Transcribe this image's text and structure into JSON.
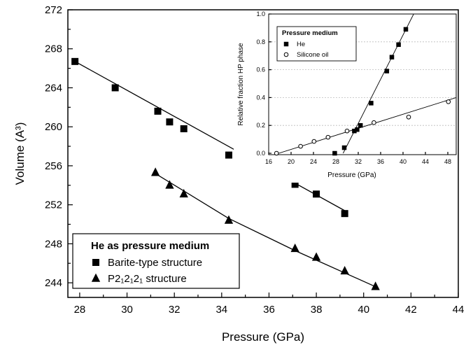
{
  "chart_data": [
    {
      "type": "scatter",
      "title": "",
      "xlabel": "Pressure (GPa)",
      "ylabel": "Volume (A³)",
      "xlim": [
        27.5,
        44
      ],
      "ylim": [
        242.5,
        272
      ],
      "xticks": [
        28,
        30,
        32,
        34,
        36,
        38,
        40,
        42,
        44
      ],
      "yticks": [
        244,
        248,
        252,
        256,
        260,
        264,
        268,
        272
      ],
      "legend": {
        "title": "He as pressure medium",
        "placement": "bottom-left"
      },
      "series": [
        {
          "name": "Barite-type structure",
          "marker": "square",
          "x": [
            27.8,
            29.5,
            31.3,
            31.8,
            32.4,
            34.3,
            37.1,
            38.0,
            39.2
          ],
          "y": [
            266.7,
            264.0,
            261.6,
            260.5,
            259.8,
            257.1,
            254.1,
            253.1,
            251.1
          ],
          "fit": [
            [
              27.8,
              266.7
            ],
            [
              39.2,
              251.4
            ]
          ]
        },
        {
          "name": "P2₁2₁2₁ structure",
          "marker": "triangle",
          "x": [
            31.2,
            31.8,
            32.4,
            34.3,
            37.1,
            38.0,
            39.2,
            40.5
          ],
          "y": [
            255.3,
            254.0,
            253.1,
            250.4,
            247.5,
            246.6,
            245.2,
            243.6
          ],
          "fit": [
            [
              31.2,
              255.2
            ],
            [
              34.3,
              250.6
            ],
            [
              37.1,
              247.3
            ],
            [
              40.5,
              243.6
            ]
          ]
        }
      ]
    },
    {
      "type": "scatter",
      "title": "",
      "xlabel": "Pressure (GPa)",
      "ylabel": "Relative fraction HP phase",
      "xlim": [
        16,
        49.5
      ],
      "ylim": [
        -0.01,
        1.0
      ],
      "xticks": [
        16,
        20,
        24,
        28,
        32,
        36,
        40,
        44,
        48
      ],
      "yticks": [
        0.0,
        0.2,
        0.4,
        0.6,
        0.8,
        1.0
      ],
      "grid": true,
      "legend": {
        "title": "Pressure medium",
        "placement": "top-left"
      },
      "series": [
        {
          "name": "He",
          "marker": "filled-square",
          "x": [
            27.8,
            29.5,
            31.3,
            31.8,
            32.4,
            34.3,
            37.1,
            38.0,
            39.2,
            40.5
          ],
          "y": [
            0.0,
            0.04,
            0.16,
            0.17,
            0.2,
            0.36,
            0.59,
            0.69,
            0.78,
            0.89
          ],
          "fit": [
            [
              29.3,
              0.0
            ],
            [
              41.9,
              1.0
            ]
          ]
        },
        {
          "name": "Silicone oil",
          "marker": "open-circle",
          "x": [
            17.4,
            21.7,
            24.1,
            26.6,
            30.0,
            34.8,
            41.0,
            48.1
          ],
          "y": [
            0.0,
            0.05,
            0.085,
            0.115,
            0.16,
            0.22,
            0.26,
            0.37
          ],
          "fit": [
            [
              17.0,
              -0.01
            ],
            [
              49.5,
              0.4
            ]
          ]
        }
      ]
    }
  ]
}
